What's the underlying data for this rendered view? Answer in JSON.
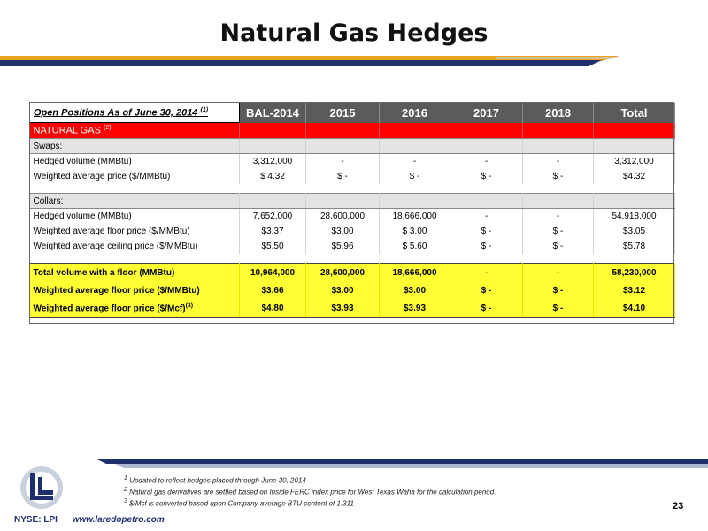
{
  "title": "Natural Gas Hedges",
  "colors": {
    "navy": "#1f2f6b",
    "gold": "#e8a320",
    "red": "#ff0000",
    "yellow": "#ffff33",
    "header_gray": "#5b5b5b"
  },
  "table": {
    "header": {
      "label": "Open Positions As of June 30, 2014",
      "label_sup": "(1)",
      "columns": [
        "BAL-2014",
        "2015",
        "2016",
        "2017",
        "2018",
        "Total"
      ]
    },
    "natural_gas": {
      "label": "NATURAL GAS",
      "sup": "(2)"
    },
    "swaps": {
      "label": "Swaps:",
      "rows": [
        {
          "label": "Hedged volume (MMBtu)",
          "values": [
            "3,312,000",
            "-",
            "-",
            "-",
            "-",
            "3,312,000"
          ]
        },
        {
          "label": "Weighted average price ($/MMBtu)",
          "values": [
            "$ 4.32",
            "$ -",
            "$ -",
            "$ -",
            "$ -",
            "$4.32"
          ]
        }
      ]
    },
    "collars": {
      "label": "Collars:",
      "rows": [
        {
          "label": "Hedged volume (MMBtu)",
          "values": [
            "7,652,000",
            "28,600,000",
            "18,666,000",
            "-",
            "-",
            "54,918,000"
          ]
        },
        {
          "label": "Weighted average floor price ($/MMBtu)",
          "values": [
            "$3.37",
            "$3.00",
            "$ 3.00",
            "$ -",
            "$ -",
            "$3.05"
          ]
        },
        {
          "label": "Weighted average ceiling price ($/MMBtu)",
          "values": [
            "$5.50",
            "$5.96",
            "$ 5.60",
            "$ -",
            "$ -",
            "$5.78"
          ]
        }
      ]
    },
    "totals": [
      {
        "label": "Total volume with a floor (MMBtu)",
        "values": [
          "10,964,000",
          "28,600,000",
          "18,666,000",
          "-",
          "-",
          "58,230,000"
        ]
      },
      {
        "label": "Weighted average floor price ($/MMBtu)",
        "values": [
          "$3.66",
          "$3.00",
          "$3.00",
          "$ -",
          "$ -",
          "$3.12"
        ]
      },
      {
        "label": "Weighted average floor price ($/Mcf)",
        "sup": "(3)",
        "values": [
          "$4.80",
          "$3.93",
          "$3.93",
          "$ -",
          "$ -",
          "$4.10"
        ]
      }
    ]
  },
  "footnotes": [
    {
      "num": "1",
      "text": "Updated to reflect hedges placed through June 30, 2014"
    },
    {
      "num": "2",
      "text": "Natural gas derivatives are settled based on Inside FERC index price for West Texas Waha for the calculation period."
    },
    {
      "num": "3",
      "text": "$/Mcf is converted based upon Company average BTU content of 1.311"
    }
  ],
  "page_number": "23",
  "footer": {
    "ticker": "NYSE: LPI",
    "url": "www.laredopetro.com"
  }
}
